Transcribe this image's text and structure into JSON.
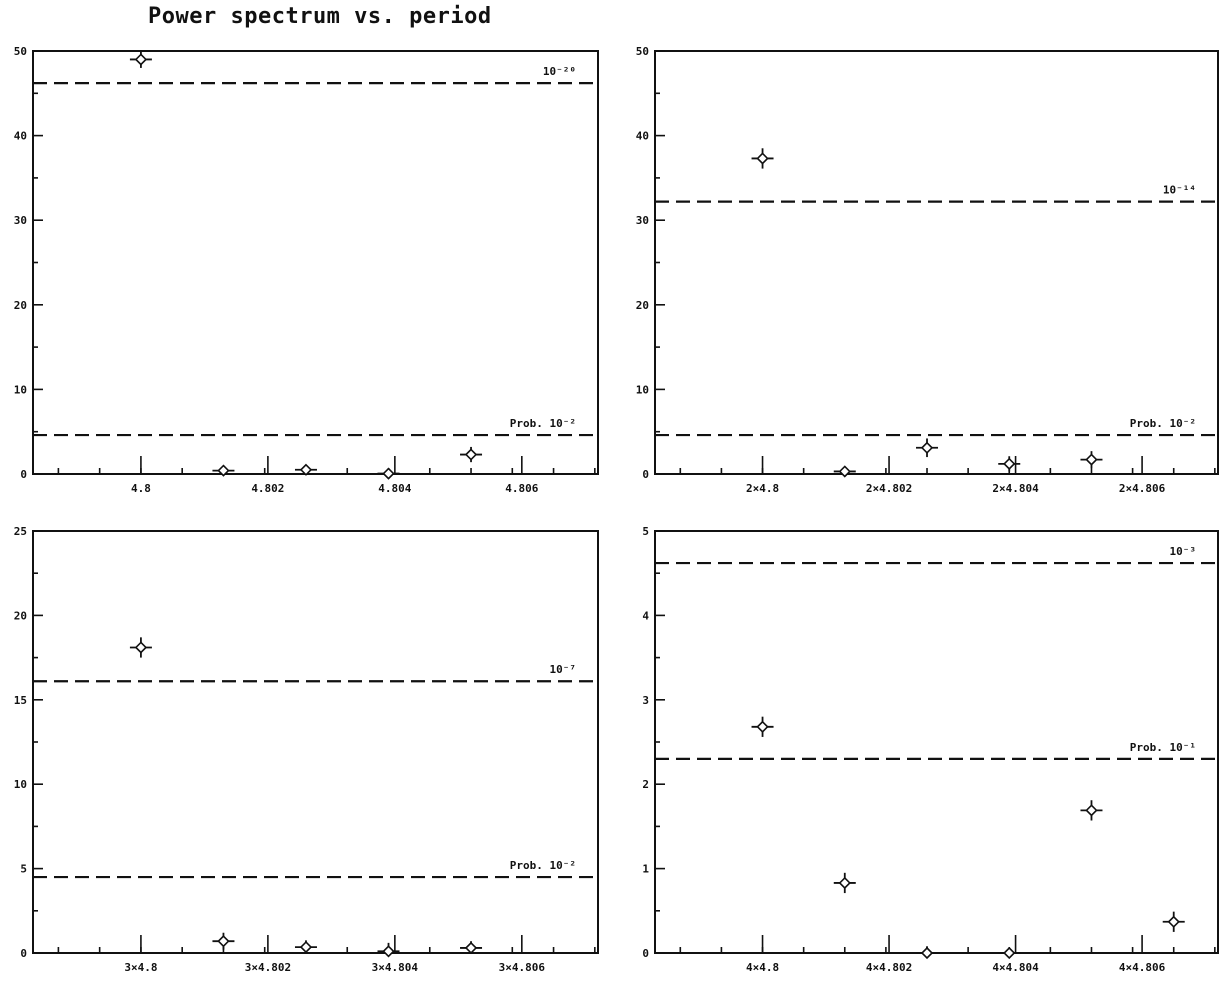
{
  "title": "Power spectrum vs. period",
  "chart_data": [
    {
      "type": "scatter",
      "title": "",
      "xlim": [
        4.7983,
        4.8072
      ],
      "ylim": [
        0,
        50
      ],
      "yticks": [
        0,
        10,
        20,
        30,
        40,
        50
      ],
      "ytick_labels": [
        "0",
        "10",
        "20",
        "30",
        "40",
        "50"
      ],
      "xticks": [
        4.8,
        4.802,
        4.804,
        4.806
      ],
      "xtick_labels": [
        "4.8",
        "4.802",
        "4.804",
        "4.806"
      ],
      "points": [
        {
          "x": 4.8,
          "y": 49,
          "yerr": 1
        },
        {
          "x": 4.8013,
          "y": 0.4,
          "yerr": 0.4
        },
        {
          "x": 4.8026,
          "y": 0.5,
          "yerr": 0.5
        },
        {
          "x": 4.8039,
          "y": 0.05,
          "yerr": 0.3
        },
        {
          "x": 4.8052,
          "y": 2.3,
          "yerr": 0.9
        }
      ],
      "ref_lines": [
        {
          "y": 46.2,
          "label": "10⁻²⁰"
        },
        {
          "y": 4.6,
          "label": "Prob.  10⁻²"
        }
      ]
    },
    {
      "type": "scatter",
      "title": "",
      "xlim": [
        4.7983,
        4.8072
      ],
      "ylim": [
        0,
        50
      ],
      "yticks": [
        0,
        10,
        20,
        30,
        40,
        50
      ],
      "ytick_labels": [
        "0",
        "10",
        "20",
        "30",
        "40",
        "50"
      ],
      "xticks": [
        4.8,
        4.802,
        4.804,
        4.806
      ],
      "xtick_labels": [
        "2×4.8",
        "2×4.802",
        "2×4.804",
        "2×4.806"
      ],
      "points": [
        {
          "x": 4.8,
          "y": 37.3,
          "yerr": 1.2
        },
        {
          "x": 4.8013,
          "y": 0.3,
          "yerr": 0.4
        },
        {
          "x": 4.8026,
          "y": 3.1,
          "yerr": 1.1
        },
        {
          "x": 4.8039,
          "y": 1.2,
          "yerr": 0.9
        },
        {
          "x": 4.8052,
          "y": 1.7,
          "yerr": 1.0
        }
      ],
      "ref_lines": [
        {
          "y": 32.2,
          "label": "10⁻¹⁴"
        },
        {
          "y": 4.6,
          "label": "Prob.  10⁻²"
        }
      ]
    },
    {
      "type": "scatter",
      "title": "",
      "xlim": [
        4.7983,
        4.8072
      ],
      "ylim": [
        0,
        25
      ],
      "yticks": [
        0,
        5,
        10,
        15,
        20,
        25
      ],
      "ytick_labels": [
        "0",
        "5",
        "10",
        "15",
        "20",
        "25"
      ],
      "xticks": [
        4.8,
        4.802,
        4.804,
        4.806
      ],
      "xtick_labels": [
        "3×4.8",
        "3×4.802",
        "3×4.804",
        "3×4.806"
      ],
      "points": [
        {
          "x": 4.8,
          "y": 18.1,
          "yerr": 0.6
        },
        {
          "x": 4.8013,
          "y": 0.7,
          "yerr": 0.5
        },
        {
          "x": 4.8026,
          "y": 0.35,
          "yerr": 0.4
        },
        {
          "x": 4.8039,
          "y": 0.1,
          "yerr": 0.5
        },
        {
          "x": 4.8052,
          "y": 0.3,
          "yerr": 0.4
        }
      ],
      "ref_lines": [
        {
          "y": 16.1,
          "label": "10⁻⁷"
        },
        {
          "y": 4.5,
          "label": "Prob.  10⁻²"
        }
      ]
    },
    {
      "type": "scatter",
      "title": "",
      "xlim": [
        4.7983,
        4.8072
      ],
      "ylim": [
        0,
        5
      ],
      "yticks": [
        0,
        1,
        2,
        3,
        4,
        5
      ],
      "ytick_labels": [
        "0",
        "1",
        "2",
        "3",
        "4",
        "5"
      ],
      "xticks": [
        4.8,
        4.802,
        4.804,
        4.806
      ],
      "xtick_labels": [
        "4×4.8",
        "4×4.802",
        "4×4.804",
        "4×4.806"
      ],
      "points": [
        {
          "x": 4.8,
          "y": 2.68,
          "yerr": 0.12
        },
        {
          "x": 4.8013,
          "y": 0.83,
          "yerr": 0.12
        },
        {
          "x": 4.8026,
          "y": 0.0,
          "yerr": 0.08
        },
        {
          "x": 4.8039,
          "y": 0.0,
          "yerr": 0.06
        },
        {
          "x": 4.8052,
          "y": 1.69,
          "yerr": 0.12
        },
        {
          "x": 4.8065,
          "y": 0.37,
          "yerr": 0.12
        }
      ],
      "ref_lines": [
        {
          "y": 4.62,
          "label": "10⁻³"
        },
        {
          "y": 2.3,
          "label": "Prob.  10⁻¹"
        }
      ]
    }
  ]
}
